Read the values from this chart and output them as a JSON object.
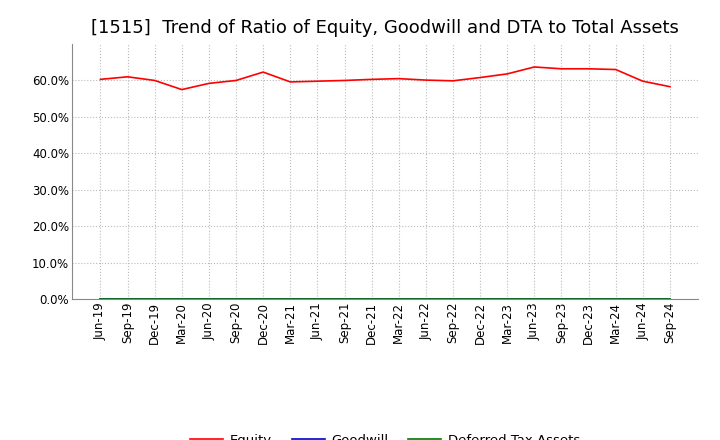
{
  "title": "[1515]  Trend of Ratio of Equity, Goodwill and DTA to Total Assets",
  "ylim": [
    0.0,
    0.7
  ],
  "yticks": [
    0.0,
    0.1,
    0.2,
    0.3,
    0.4,
    0.5,
    0.6
  ],
  "background_color": "#ffffff",
  "plot_bg_color": "#ffffff",
  "grid_color": "#bbbbbb",
  "x_labels": [
    "Jun-19",
    "Sep-19",
    "Dec-19",
    "Mar-20",
    "Jun-20",
    "Sep-20",
    "Dec-20",
    "Mar-21",
    "Jun-21",
    "Sep-21",
    "Dec-21",
    "Mar-22",
    "Jun-22",
    "Sep-22",
    "Dec-22",
    "Mar-23",
    "Jun-23",
    "Sep-23",
    "Dec-23",
    "Mar-24",
    "Jun-24",
    "Sep-24"
  ],
  "equity": [
    0.603,
    0.61,
    0.6,
    0.575,
    0.592,
    0.6,
    0.623,
    0.596,
    0.598,
    0.6,
    0.603,
    0.605,
    0.601,
    0.599,
    0.608,
    0.618,
    0.637,
    0.632,
    0.632,
    0.63,
    0.598,
    0.583
  ],
  "goodwill": [
    0.0,
    0.0,
    0.0,
    0.0,
    0.0,
    0.0,
    0.0,
    0.0,
    0.0,
    0.0,
    0.0,
    0.0,
    0.0,
    0.0,
    0.0,
    0.0,
    0.0,
    0.0,
    0.0,
    0.0,
    0.0,
    0.0
  ],
  "dta": [
    0.0,
    0.0,
    0.0,
    0.0,
    0.0,
    0.0,
    0.0,
    0.0,
    0.0,
    0.0,
    0.0,
    0.0,
    0.0,
    0.0,
    0.0,
    0.0,
    0.0,
    0.0,
    0.0,
    0.0,
    0.0,
    0.0
  ],
  "equity_color": "#ff0000",
  "goodwill_color": "#0000cc",
  "dta_color": "#007700",
  "title_fontsize": 13,
  "tick_fontsize": 8.5,
  "legend_fontsize": 9.5
}
